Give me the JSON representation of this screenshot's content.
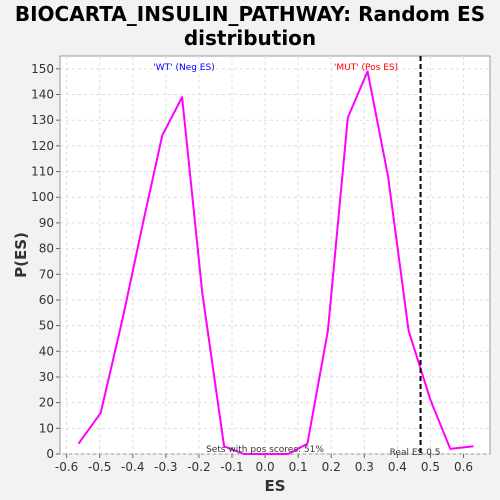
{
  "chart_data": {
    "type": "line",
    "title": "BIOCARTA_INSULIN_PATHWAY: Random ES distribution",
    "xlabel": "ES",
    "ylabel": "P(ES)",
    "xlim": [
      -0.62,
      0.68
    ],
    "ylim": [
      0,
      155
    ],
    "xticks": [
      -0.6,
      -0.5,
      -0.4,
      -0.3,
      -0.2,
      -0.1,
      0.0,
      0.1,
      0.2,
      0.3,
      0.4,
      0.5,
      0.6
    ],
    "xtick_labels": [
      "-0.6",
      "-0.5",
      "-0.4",
      "-0.3",
      "-0.2",
      "-0.1",
      "0.0",
      "0.1",
      "0.2",
      "0.3",
      "0.4",
      "0.5",
      "0.6"
    ],
    "yticks": [
      0,
      10,
      20,
      30,
      40,
      50,
      60,
      70,
      80,
      90,
      100,
      110,
      120,
      130,
      140,
      150
    ],
    "grid": true,
    "series": [
      {
        "color": "#ff00ff",
        "x": [
          -0.564,
          -0.497,
          -0.43,
          -0.369,
          -0.311,
          -0.251,
          -0.19,
          -0.124,
          -0.064,
          0.0,
          0.07,
          0.128,
          0.19,
          0.25,
          0.31,
          0.372,
          0.434,
          0.5,
          0.56,
          0.63
        ],
        "y": [
          4,
          16,
          53,
          90,
          124,
          139,
          63,
          3,
          0,
          0,
          0,
          4,
          48,
          131,
          149,
          108,
          48,
          21,
          2,
          3
        ]
      }
    ],
    "real_es": 0.47,
    "annotations": {
      "neg_label": "'WT' (Neg ES)",
      "pos_label": "'MUT' (Pos ES)",
      "pos_scores": "Sets with pos scores: 51%",
      "real_es_label": "Real ES 0.5"
    },
    "colors": {
      "neg_label": "#0000ff",
      "pos_label": "#ff0000",
      "real_es_line": "#000000",
      "plot_bg": "#ffffff",
      "grid": "#dddddd"
    }
  }
}
